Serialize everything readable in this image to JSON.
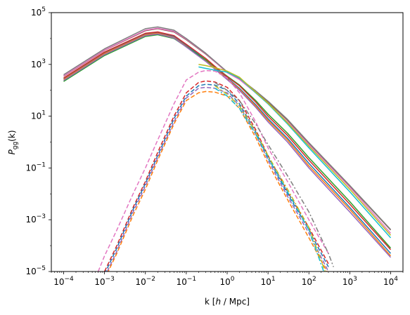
{
  "chart_data": {
    "type": "line",
    "title": "",
    "xlabel_pre": "k [",
    "xlabel_h": "h",
    "xlabel_post": " / Mpc]",
    "ylabel_main": "P",
    "ylabel_sub": "gg",
    "ylabel_arg": "(k)",
    "xscale": "log",
    "yscale": "log",
    "xlim": [
      5e-05,
      20000
    ],
    "ylim": [
      1e-05,
      100000
    ],
    "grid": false,
    "x_ticks": [
      {
        "base": "10",
        "exp": "−4",
        "value": 0.0001
      },
      {
        "base": "10",
        "exp": "−3",
        "value": 0.001
      },
      {
        "base": "10",
        "exp": "−2",
        "value": 0.01
      },
      {
        "base": "10",
        "exp": "−1",
        "value": 0.1
      },
      {
        "base": "10",
        "exp": "0",
        "value": 1
      },
      {
        "base": "10",
        "exp": "1",
        "value": 10
      },
      {
        "base": "10",
        "exp": "2",
        "value": 100
      },
      {
        "base": "10",
        "exp": "3",
        "value": 1000
      },
      {
        "base": "10",
        "exp": "4",
        "value": 10000
      }
    ],
    "y_ticks": [
      {
        "base": "10",
        "exp": "−5",
        "value": 1e-05
      },
      {
        "base": "10",
        "exp": "−3",
        "value": 0.001
      },
      {
        "base": "10",
        "exp": "−1",
        "value": 0.1
      },
      {
        "base": "10",
        "exp": "1",
        "value": 10
      },
      {
        "base": "10",
        "exp": "3",
        "value": 1000
      },
      {
        "base": "10",
        "exp": "5",
        "value": 100000
      }
    ],
    "series": [
      {
        "style": "solid",
        "color": "#1f77b4",
        "x": [
          0.0001,
          0.001,
          0.01,
          0.02,
          0.05,
          0.1,
          0.3,
          1,
          2,
          5,
          10,
          30,
          100,
          1000,
          10000
        ],
        "y": [
          280,
          2800,
          15000,
          17000,
          12000,
          5500,
          1500,
          300,
          120,
          28,
          8,
          1.4,
          0.15,
          0.003,
          5e-05
        ]
      },
      {
        "style": "solid",
        "color": "#ff7f0e",
        "x": [
          0.0001,
          0.001,
          0.01,
          0.02,
          0.05,
          0.1,
          0.3,
          1,
          2,
          5,
          10,
          30,
          100,
          1000,
          10000
        ],
        "y": [
          260,
          2600,
          14000,
          16000,
          11000,
          5000,
          1400,
          280,
          110,
          25,
          7,
          1.2,
          0.12,
          0.0025,
          4e-05
        ]
      },
      {
        "style": "solid",
        "color": "#2ca02c",
        "x": [
          0.0001,
          0.001,
          0.01,
          0.02,
          0.05,
          0.1,
          0.3,
          1,
          2,
          5,
          10,
          30,
          100,
          1000,
          10000
        ],
        "y": [
          220,
          2200,
          12000,
          14000,
          10000,
          4800,
          1500,
          350,
          160,
          40,
          12,
          2.2,
          0.25,
          0.005,
          8e-05
        ]
      },
      {
        "style": "solid",
        "color": "#d62728",
        "x": [
          0.0001,
          0.001,
          0.01,
          0.02,
          0.05,
          0.1,
          0.3,
          1,
          2,
          5,
          10,
          30,
          100,
          1000,
          10000
        ],
        "y": [
          300,
          3000,
          16000,
          18000,
          13000,
          6000,
          1700,
          330,
          150,
          35,
          10,
          1.8,
          0.2,
          0.004,
          7e-05
        ]
      },
      {
        "style": "solid",
        "color": "#9467bd",
        "x": [
          0.0001,
          0.001,
          0.01,
          0.02,
          0.05,
          0.1,
          0.3,
          1,
          2,
          5,
          10,
          30,
          100,
          1000,
          10000
        ],
        "y": [
          240,
          2400,
          13000,
          15000,
          10500,
          4700,
          1300,
          260,
          100,
          22,
          6,
          1.0,
          0.1,
          0.002,
          3.5e-05
        ]
      },
      {
        "style": "solid",
        "color": "#8c564b",
        "x": [
          0.0001,
          0.001,
          0.01,
          0.02,
          0.05,
          0.1,
          0.3,
          1,
          2,
          5,
          10,
          30,
          100,
          1000,
          10000
        ],
        "y": [
          350,
          3500,
          20000,
          24000,
          18000,
          9000,
          2500,
          500,
          280,
          90,
          35,
          7,
          0.9,
          0.02,
          0.0004
        ]
      },
      {
        "style": "solid",
        "color": "#e377c2",
        "x": [
          0.0001,
          0.001,
          0.01,
          0.02,
          0.05,
          0.1,
          0.3,
          1,
          2,
          5,
          10,
          30,
          100,
          1000,
          10000
        ],
        "y": [
          360,
          3600,
          21000,
          25000,
          19000,
          9500,
          2600,
          480,
          260,
          80,
          30,
          6,
          0.8,
          0.018,
          0.0003
        ]
      },
      {
        "style": "solid",
        "color": "#7f7f7f",
        "x": [
          0.0001,
          0.001,
          0.01,
          0.02,
          0.05,
          0.1,
          0.3,
          1,
          2,
          5,
          10,
          30,
          100,
          1000,
          10000
        ],
        "y": [
          400,
          4000,
          24000,
          28000,
          21000,
          10000,
          2700,
          520,
          290,
          95,
          38,
          7.5,
          0.95,
          0.021,
          0.00042
        ]
      },
      {
        "style": "dashed",
        "color": "#d62728",
        "x": [
          0.001,
          0.002,
          0.005,
          0.01,
          0.02,
          0.05,
          0.1,
          0.2,
          0.3,
          0.5,
          1,
          2,
          5,
          10,
          30,
          100,
          300
        ],
        "y": [
          1e-05,
          0.0001,
          0.003,
          0.03,
          0.4,
          10,
          80,
          200,
          230,
          210,
          130,
          40,
          3,
          0.3,
          0.012,
          0.0005,
          2e-05
        ]
      },
      {
        "style": "dashed",
        "color": "#1f77b4",
        "x": [
          0.001,
          0.002,
          0.005,
          0.01,
          0.02,
          0.05,
          0.1,
          0.2,
          0.3,
          0.5,
          1,
          2,
          5,
          10,
          30,
          100,
          300
        ],
        "y": [
          8e-06,
          8e-05,
          0.0025,
          0.025,
          0.3,
          8,
          60,
          150,
          170,
          160,
          100,
          30,
          2.5,
          0.25,
          0.01,
          0.0004,
          1.5e-05
        ]
      },
      {
        "style": "dashed",
        "color": "#9467bd",
        "x": [
          0.001,
          0.002,
          0.005,
          0.01,
          0.02,
          0.05,
          0.1,
          0.2,
          0.3,
          0.5,
          1,
          2,
          5,
          10,
          30,
          100,
          300
        ],
        "y": [
          6e-06,
          6e-05,
          0.002,
          0.02,
          0.25,
          6,
          50,
          120,
          130,
          120,
          80,
          25,
          2,
          0.2,
          0.008,
          0.0003,
          1e-05
        ]
      },
      {
        "style": "dashed",
        "color": "#ff7f0e",
        "x": [
          0.001,
          0.002,
          0.005,
          0.01,
          0.02,
          0.05,
          0.1,
          0.2,
          0.3,
          0.5,
          1,
          2,
          5,
          10,
          30,
          100,
          300
        ],
        "y": [
          5e-06,
          5e-05,
          0.0015,
          0.015,
          0.2,
          5,
          40,
          80,
          90,
          85,
          60,
          20,
          1.5,
          0.15,
          0.006,
          0.0002,
          8e-06
        ]
      },
      {
        "style": "dashed",
        "color": "#e377c2",
        "x": [
          0.0007,
          0.001,
          0.002,
          0.005,
          0.01,
          0.02,
          0.05,
          0.1,
          0.2,
          0.3,
          0.5,
          1,
          2,
          5,
          10,
          30,
          100,
          300
        ],
        "y": [
          1e-05,
          4e-05,
          0.0004,
          0.01,
          0.1,
          1.2,
          30,
          250,
          500,
          580,
          550,
          300,
          80,
          6,
          0.6,
          0.03,
          0.001,
          5e-05
        ]
      },
      {
        "style": "dashdot",
        "color": "#7f7f7f",
        "x": [
          0.5,
          1,
          2,
          5,
          10,
          30,
          100,
          300,
          400
        ],
        "y": [
          200,
          100,
          40,
          5,
          0.8,
          0.05,
          0.002,
          5e-05,
          1.5e-05
        ]
      },
      {
        "style": "dashdot",
        "color": "#bcbd22",
        "x": [
          0.5,
          1,
          2,
          5,
          10,
          30,
          100,
          250
        ],
        "y": [
          150,
          70,
          25,
          2.5,
          0.3,
          0.015,
          0.0005,
          1e-05
        ]
      },
      {
        "style": "dashdot",
        "color": "#17becf",
        "x": [
          0.5,
          1,
          2,
          5,
          10,
          30,
          100,
          230
        ],
        "y": [
          120,
          60,
          20,
          2,
          0.25,
          0.012,
          0.0004,
          1e-05
        ]
      },
      {
        "style": "solid",
        "color": "#17becf",
        "x": [
          0.2,
          0.3,
          0.5,
          1,
          2,
          5,
          10,
          30,
          100,
          1000,
          10000
        ],
        "y": [
          800,
          700,
          600,
          500,
          300,
          80,
          30,
          5,
          0.6,
          0.012,
          0.0002
        ]
      },
      {
        "style": "solid",
        "color": "#bcbd22",
        "x": [
          0.2,
          0.3,
          0.5,
          1,
          2,
          5,
          10,
          30,
          100,
          1000,
          10000
        ],
        "y": [
          1000,
          900,
          750,
          550,
          320,
          85,
          32,
          5.5,
          0.7,
          0.015,
          0.00025
        ]
      }
    ]
  }
}
